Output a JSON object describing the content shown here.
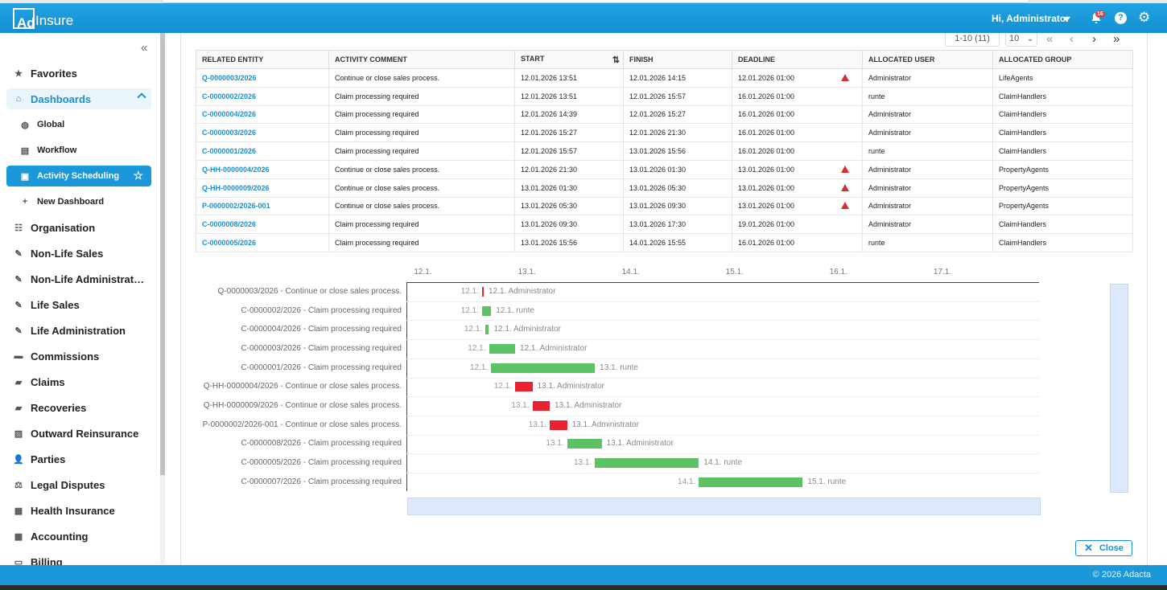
{
  "app": {
    "logo_box": "Ad",
    "logo_text": "Insure",
    "greeting": "Hi, Administrator",
    "notifications": "16",
    "help": "?",
    "copyright": "© 2026 Adacta"
  },
  "sidebar": {
    "collapse": "«",
    "items": [
      {
        "label": "Favorites",
        "icon": "star-icon"
      },
      {
        "label": "Dashboards",
        "icon": "home-icon"
      },
      {
        "label": "Global",
        "icon": "globe-icon"
      },
      {
        "label": "Workflow",
        "icon": "workflow-icon"
      },
      {
        "label": "Activity Scheduling",
        "icon": "calendar-icon"
      },
      {
        "label": "New Dashboard",
        "icon": "plus-icon"
      },
      {
        "label": "Organisation",
        "icon": "org-icon"
      },
      {
        "label": "Non-Life Sales",
        "icon": "sales-icon"
      },
      {
        "label": "Non-Life Administrat…",
        "icon": "admin-icon"
      },
      {
        "label": "Life Sales",
        "icon": "sales-icon"
      },
      {
        "label": "Life Administration",
        "icon": "admin-icon"
      },
      {
        "label": "Commissions",
        "icon": "folder-icon"
      },
      {
        "label": "Claims",
        "icon": "briefcase-icon"
      },
      {
        "label": "Recoveries",
        "icon": "briefcase-icon"
      },
      {
        "label": "Outward Reinsurance",
        "icon": "reinsurance-icon"
      },
      {
        "label": "Parties",
        "icon": "user-icon"
      },
      {
        "label": "Legal Disputes",
        "icon": "scales-icon"
      },
      {
        "label": "Health Insurance",
        "icon": "health-icon"
      },
      {
        "label": "Accounting",
        "icon": "calculator-icon"
      },
      {
        "label": "Billing",
        "icon": "billing-icon"
      }
    ]
  },
  "pager": {
    "range": "1-10 (11)",
    "size": "10"
  },
  "table": {
    "headers": [
      "RELATED ENTITY",
      "ACTIVITY COMMENT",
      "START",
      "FINISH",
      "DEADLINE",
      "ALLOCATED USER",
      "ALLOCATED GROUP"
    ],
    "rows": [
      {
        "entity": "Q-0000003/2026",
        "comment": "Continue or close sales process.",
        "start": "12.01.2026 13:51",
        "finish": "12.01.2026 14:15",
        "deadline": "12.01.2026 01:00",
        "warn": true,
        "user": "Administrator",
        "group": "LifeAgents"
      },
      {
        "entity": "C-0000002/2026",
        "comment": "Claim processing required",
        "start": "12.01.2026 13:51",
        "finish": "12.01.2026 15:57",
        "deadline": "16.01.2026 01:00",
        "warn": false,
        "user": "runte",
        "group": "ClaimHandlers"
      },
      {
        "entity": "C-0000004/2026",
        "comment": "Claim processing required",
        "start": "12.01.2026 14:39",
        "finish": "12.01.2026 15:27",
        "deadline": "16.01.2026 01:00",
        "warn": false,
        "user": "Administrator",
        "group": "ClaimHandlers"
      },
      {
        "entity": "C-0000003/2026",
        "comment": "Claim processing required",
        "start": "12.01.2026 15:27",
        "finish": "12.01.2026 21:30",
        "deadline": "16.01.2026 01:00",
        "warn": false,
        "user": "Administrator",
        "group": "ClaimHandlers"
      },
      {
        "entity": "C-0000001/2026",
        "comment": "Claim processing required",
        "start": "12.01.2026 15:57",
        "finish": "13.01.2026 15:56",
        "deadline": "16.01.2026 01:00",
        "warn": false,
        "user": "runte",
        "group": "ClaimHandlers"
      },
      {
        "entity": "Q-HH-0000004/2026",
        "comment": "Continue or close sales process.",
        "start": "12.01.2026 21:30",
        "finish": "13.01.2026 01:30",
        "deadline": "13.01.2026 01:00",
        "warn": true,
        "user": "Administrator",
        "group": "PropertyAgents"
      },
      {
        "entity": "Q-HH-0000009/2026",
        "comment": "Continue or close sales process.",
        "start": "13.01.2026 01:30",
        "finish": "13.01.2026 05:30",
        "deadline": "13.01.2026 01:00",
        "warn": true,
        "user": "Administrator",
        "group": "PropertyAgents"
      },
      {
        "entity": "P-0000002/2026-001",
        "comment": "Continue or close sales process.",
        "start": "13.01.2026 05:30",
        "finish": "13.01.2026 09:30",
        "deadline": "13.01.2026 01:00",
        "warn": true,
        "user": "Administrator",
        "group": "PropertyAgents"
      },
      {
        "entity": "C-0000008/2026",
        "comment": "Claim processing required",
        "start": "13.01.2026 09:30",
        "finish": "13.01.2026 17:30",
        "deadline": "19.01.2026 01:00",
        "warn": false,
        "user": "Administrator",
        "group": "ClaimHandlers"
      },
      {
        "entity": "C-0000005/2026",
        "comment": "Claim processing required",
        "start": "13.01.2026 15:56",
        "finish": "14.01.2026 15:55",
        "deadline": "16.01.2026 01:00",
        "warn": false,
        "user": "runte",
        "group": "ClaimHandlers"
      }
    ]
  },
  "chart_data": {
    "type": "gantt",
    "x_ticks": [
      "12.1.",
      "13.1.",
      "14.1.",
      "15.1.",
      "16.1.",
      "17.1."
    ],
    "colors": {
      "ok": "#5cc365",
      "overdue": "#e8222e"
    },
    "tasks": [
      {
        "label": "Q-0000003/2026 - Continue or close sales process.",
        "start_day": 12.578,
        "end_day": 12.594,
        "overdue": true,
        "start_label": "12.1.",
        "end_label": "12.1. Administrator"
      },
      {
        "label": "C-0000002/2026 - Claim processing required",
        "start_day": 12.578,
        "end_day": 12.665,
        "overdue": false,
        "start_label": "12.1.",
        "end_label": "12.1. runte"
      },
      {
        "label": "C-0000004/2026 - Claim processing required",
        "start_day": 12.61,
        "end_day": 12.644,
        "overdue": false,
        "start_label": "12.1.",
        "end_label": "12.1. Administrator"
      },
      {
        "label": "C-0000003/2026 - Claim processing required",
        "start_day": 12.644,
        "end_day": 12.896,
        "overdue": false,
        "start_label": "12.1.",
        "end_label": "12.1. Administrator"
      },
      {
        "label": "C-0000001/2026 - Claim processing required",
        "start_day": 12.665,
        "end_day": 13.664,
        "overdue": false,
        "start_label": "12.1.",
        "end_label": "13.1. runte"
      },
      {
        "label": "Q-HH-0000004/2026 - Continue or close sales process.",
        "start_day": 12.896,
        "end_day": 13.063,
        "overdue": true,
        "start_label": "12.1.",
        "end_label": "13.1. Administrator"
      },
      {
        "label": "Q-HH-0000009/2026 - Continue or close sales process.",
        "start_day": 13.063,
        "end_day": 13.229,
        "overdue": true,
        "start_label": "13.1.",
        "end_label": "13.1. Administrator"
      },
      {
        "label": "P-0000002/2026-001 - Continue or close sales process.",
        "start_day": 13.229,
        "end_day": 13.396,
        "overdue": true,
        "start_label": "13.1.",
        "end_label": "13.1. Administrator"
      },
      {
        "label": "C-0000008/2026 - Claim processing required",
        "start_day": 13.396,
        "end_day": 13.729,
        "overdue": false,
        "start_label": "13.1.",
        "end_label": "13.1. Administrator"
      },
      {
        "label": "C-0000005/2026 - Claim processing required",
        "start_day": 13.664,
        "end_day": 14.664,
        "overdue": false,
        "start_label": "13.1.",
        "end_label": "14.1. runte"
      },
      {
        "label": "C-0000007/2026 - Claim processing required",
        "start_day": 14.664,
        "end_day": 15.664,
        "overdue": false,
        "start_label": "14.1.",
        "end_label": "15.1. runte"
      }
    ]
  },
  "close_label": "Close"
}
